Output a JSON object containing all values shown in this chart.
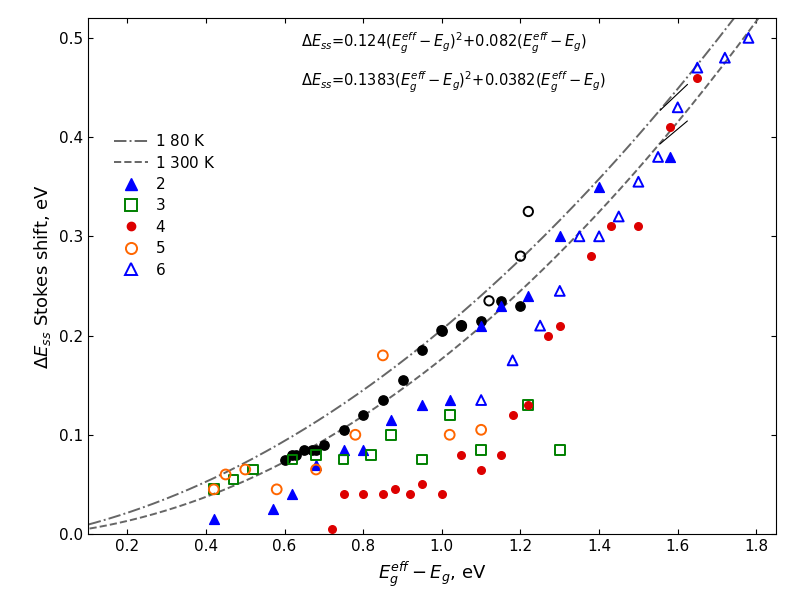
{
  "series1_80K": {
    "label": "1 80 K",
    "color": "#666666",
    "a": 0.124,
    "b": 0.082
  },
  "series1_300K": {
    "label": "1 300 K",
    "color": "#666666",
    "a": 0.1383,
    "b": 0.0382
  },
  "series1_filled": {
    "color": "black",
    "x": [
      0.6,
      0.62,
      0.63,
      0.65,
      0.67,
      0.68,
      0.7,
      0.75,
      0.8,
      0.85,
      0.9,
      0.95,
      1.0,
      1.05,
      1.1,
      1.15,
      1.2
    ],
    "y": [
      0.075,
      0.08,
      0.08,
      0.085,
      0.085,
      0.085,
      0.09,
      0.105,
      0.12,
      0.135,
      0.155,
      0.185,
      0.205,
      0.21,
      0.215,
      0.235,
      0.23
    ]
  },
  "series1_open": {
    "color": "black",
    "x": [
      1.0,
      1.05,
      1.12,
      1.2,
      1.22
    ],
    "y": [
      0.205,
      0.21,
      0.235,
      0.28,
      0.325
    ]
  },
  "series2": {
    "label": "2",
    "color": "blue",
    "x": [
      0.42,
      0.57,
      0.62,
      0.68,
      0.75,
      0.8,
      0.87,
      0.95,
      1.02,
      1.1,
      1.15,
      1.22,
      1.3,
      1.4,
      1.58
    ],
    "y": [
      0.015,
      0.025,
      0.04,
      0.07,
      0.085,
      0.085,
      0.115,
      0.13,
      0.135,
      0.21,
      0.23,
      0.24,
      0.3,
      0.35,
      0.38
    ]
  },
  "series3": {
    "label": "3",
    "color": "green",
    "x": [
      0.42,
      0.47,
      0.52,
      0.62,
      0.68,
      0.75,
      0.82,
      0.87,
      0.95,
      1.02,
      1.1,
      1.22,
      1.3
    ],
    "y": [
      0.045,
      0.055,
      0.065,
      0.075,
      0.08,
      0.075,
      0.08,
      0.1,
      0.075,
      0.12,
      0.085,
      0.13,
      0.085
    ]
  },
  "series4": {
    "label": "4",
    "color": "#dd0000",
    "x": [
      0.72,
      0.75,
      0.8,
      0.85,
      0.88,
      0.92,
      0.95,
      1.0,
      1.05,
      1.1,
      1.15,
      1.18,
      1.22,
      1.27,
      1.3,
      1.38,
      1.43,
      1.5,
      1.58,
      1.65
    ],
    "y": [
      0.005,
      0.04,
      0.04,
      0.04,
      0.045,
      0.04,
      0.05,
      0.04,
      0.08,
      0.065,
      0.08,
      0.12,
      0.13,
      0.2,
      0.21,
      0.28,
      0.31,
      0.31,
      0.41,
      0.46
    ]
  },
  "series5": {
    "label": "5",
    "color": "#FF6600",
    "x": [
      0.42,
      0.45,
      0.5,
      0.58,
      0.68,
      0.78,
      0.85,
      1.02,
      1.1
    ],
    "y": [
      0.045,
      0.06,
      0.065,
      0.045,
      0.065,
      0.1,
      0.18,
      0.1,
      0.105
    ]
  },
  "series6": {
    "label": "6",
    "color": "blue",
    "x": [
      1.1,
      1.18,
      1.25,
      1.3,
      1.35,
      1.4,
      1.45,
      1.5,
      1.55,
      1.6,
      1.65,
      1.72,
      1.78
    ],
    "y": [
      0.135,
      0.175,
      0.21,
      0.245,
      0.3,
      0.3,
      0.32,
      0.355,
      0.38,
      0.43,
      0.47,
      0.48,
      0.5
    ]
  },
  "xlabel": "$E_g^{eff}-E_g$, eV",
  "ylabel": "$\\Delta E_{ss}$ Stokes shift, eV",
  "xlim": [
    0.1,
    1.85
  ],
  "ylim": [
    0.0,
    0.52
  ],
  "xticks": [
    0.2,
    0.4,
    0.6,
    0.8,
    1.0,
    1.2,
    1.4,
    1.6,
    1.8
  ],
  "yticks": [
    0.0,
    0.1,
    0.2,
    0.3,
    0.4,
    0.5
  ]
}
